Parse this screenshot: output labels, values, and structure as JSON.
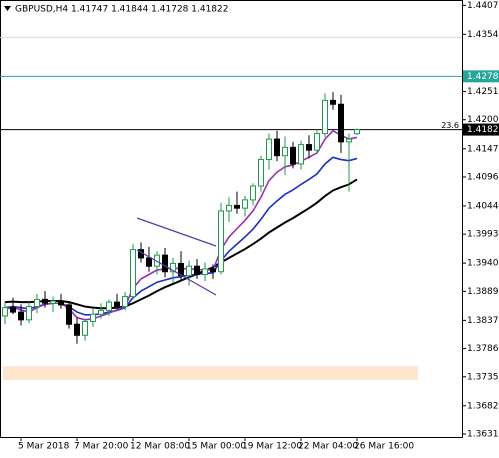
{
  "chart_data": {
    "type": "candlestick",
    "title": "GBPUSD,H4  1.41747 1.41844 1.41728 1.41822",
    "categories": [
      null,
      null,
      "5 Mar 2018",
      null,
      null,
      null,
      null,
      null,
      null,
      "7 Mar 20:00",
      null,
      null,
      null,
      null,
      null,
      null,
      "12 Mar 08:00",
      null,
      null,
      null,
      null,
      null,
      null,
      "15 Mar 00:00",
      null,
      null,
      null,
      null,
      null,
      null,
      "19 Mar 12:00",
      null,
      null,
      null,
      null,
      null,
      null,
      "22 Mar 04:00",
      null,
      null,
      null,
      null,
      null,
      null,
      "26 Mar 16:00"
    ],
    "open": [
      1.3845,
      1.386,
      1.3852,
      1.3838,
      1.3862,
      1.3875,
      1.3868,
      1.3872,
      1.3865,
      1.383,
      1.381,
      1.3835,
      1.3848,
      1.3855,
      1.387,
      1.3862,
      1.388,
      1.3965,
      1.395,
      1.3935,
      1.3955,
      1.3925,
      1.394,
      1.3918,
      1.3935,
      1.392,
      1.393,
      1.3925,
      1.4035,
      1.4045,
      1.404,
      1.4055,
      1.408,
      1.4128,
      1.4165,
      1.4135,
      1.415,
      1.412,
      1.4155,
      1.4145,
      1.4175,
      1.4235,
      1.4228,
      1.416,
      1.41747
    ],
    "high": [
      1.3872,
      1.3878,
      1.3866,
      1.387,
      1.3885,
      1.389,
      1.388,
      1.3885,
      1.387,
      1.3842,
      1.384,
      1.3858,
      1.3868,
      1.3875,
      1.3885,
      1.3888,
      1.3975,
      1.3978,
      1.397,
      1.3962,
      1.3968,
      1.395,
      1.3962,
      1.3945,
      1.3948,
      1.3942,
      1.3938,
      1.405,
      1.406,
      1.407,
      1.4062,
      1.4085,
      1.4135,
      1.4175,
      1.418,
      1.417,
      1.416,
      1.4162,
      1.4172,
      1.4182,
      1.4248,
      1.425,
      1.4245,
      1.4175,
      1.41844
    ],
    "low": [
      1.383,
      1.3848,
      1.3828,
      1.3832,
      1.385,
      1.386,
      1.3852,
      1.3858,
      1.3822,
      1.3795,
      1.38,
      1.3825,
      1.384,
      1.3845,
      1.3858,
      1.3855,
      1.3875,
      1.3942,
      1.3925,
      1.392,
      1.3915,
      1.3905,
      1.391,
      1.39,
      1.3912,
      1.3908,
      1.3912,
      1.392,
      1.4015,
      1.403,
      1.4025,
      1.4045,
      1.407,
      1.411,
      1.4125,
      1.41,
      1.4112,
      1.411,
      1.413,
      1.4138,
      1.4168,
      1.4218,
      1.414,
      1.407,
      1.41728
    ],
    "close": [
      1.386,
      1.3852,
      1.3838,
      1.3862,
      1.3875,
      1.3868,
      1.3872,
      1.3865,
      1.383,
      1.381,
      1.3835,
      1.3848,
      1.3855,
      1.387,
      1.3862,
      1.388,
      1.3965,
      1.395,
      1.3935,
      1.3955,
      1.3925,
      1.394,
      1.3918,
      1.3935,
      1.392,
      1.393,
      1.3925,
      1.4035,
      1.4045,
      1.404,
      1.4055,
      1.408,
      1.4128,
      1.4165,
      1.4135,
      1.415,
      1.412,
      1.4155,
      1.4145,
      1.4175,
      1.4235,
      1.4228,
      1.416,
      1.4165,
      1.41822
    ],
    "up_color": "#1e9a4c",
    "down_color": "#000000",
    "ma_lines": [
      {
        "color": "#000000",
        "values": [
          1.387,
          1.3871,
          1.387,
          1.387,
          1.3871,
          1.3872,
          1.3872,
          1.3872,
          1.387,
          1.3866,
          1.3862,
          1.386,
          1.3859,
          1.3859,
          1.386,
          1.3862,
          1.3868,
          1.3875,
          1.3882,
          1.389,
          1.3897,
          1.3903,
          1.3909,
          1.3915,
          1.3921,
          1.3927,
          1.3933,
          1.3942,
          1.395,
          1.3958,
          1.3966,
          1.3975,
          1.3985,
          1.3996,
          1.4005,
          1.4014,
          1.4022,
          1.4031,
          1.404,
          1.405,
          1.4062,
          1.4072,
          1.4078,
          1.4083,
          1.4092
        ]
      },
      {
        "color": "#1c2fc8",
        "values": [
          1.386,
          1.3862,
          1.386,
          1.3858,
          1.3862,
          1.3866,
          1.3868,
          1.3868,
          1.3862,
          1.3852,
          1.3847,
          1.3847,
          1.3849,
          1.3852,
          1.3855,
          1.386,
          1.3878,
          1.389,
          1.3898,
          1.3906,
          1.391,
          1.3914,
          1.3916,
          1.3919,
          1.392,
          1.3922,
          1.3923,
          1.3945,
          1.3962,
          1.3975,
          1.3988,
          1.4002,
          1.402,
          1.404,
          1.4053,
          1.4065,
          1.4073,
          1.4083,
          1.4092,
          1.4102,
          1.412,
          1.4132,
          1.4128,
          1.4126,
          1.413
        ]
      },
      {
        "color": "#9b2fb5",
        "values": [
          1.3858,
          1.386,
          1.3856,
          1.3852,
          1.386,
          1.3866,
          1.3868,
          1.3868,
          1.3858,
          1.3842,
          1.3838,
          1.384,
          1.3845,
          1.385,
          1.3856,
          1.3862,
          1.3895,
          1.3912,
          1.392,
          1.3928,
          1.393,
          1.3932,
          1.393,
          1.3931,
          1.3928,
          1.3929,
          1.3928,
          1.3965,
          1.3988,
          1.4003,
          1.4018,
          1.4035,
          1.406,
          1.409,
          1.4105,
          1.4115,
          1.4118,
          1.4125,
          1.4132,
          1.414,
          1.4165,
          1.418,
          1.4172,
          1.4165,
          1.4168
        ]
      }
    ],
    "ylim": [
      1.3626,
      1.4413
    ],
    "yticks": [
      {
        "value": 1.4407,
        "label": "1.44070"
      },
      1.43545,
      {
        "value": 1.4251,
        "label": "1.42510"
      },
      {
        "value": 1.42,
        "label": "1.42000"
      },
      1.41475,
      1.40965,
      {
        "value": 1.4044,
        "label": "1.40440"
      },
      {
        "value": 1.3993,
        "label": "1.39930"
      },
      1.39405,
      1.38895,
      {
        "value": 1.3837,
        "label": "1.38370"
      },
      {
        "value": 1.3786,
        "label": "1.37860"
      },
      {
        "value": 1.3735,
        "label": "1.37350"
      },
      1.36825,
      1.36315
    ],
    "hlines": [
      {
        "value": 1.4349,
        "color": "#e6dccb"
      },
      {
        "value": 1.42785,
        "color": "#26a69a"
      },
      {
        "value": 1.41822,
        "color": "#000000"
      }
    ],
    "zones": [
      {
        "from": 1.3729,
        "to": 1.3754,
        "color": "#fde6cc"
      }
    ],
    "annotations": [
      "23.6"
    ]
  }
}
